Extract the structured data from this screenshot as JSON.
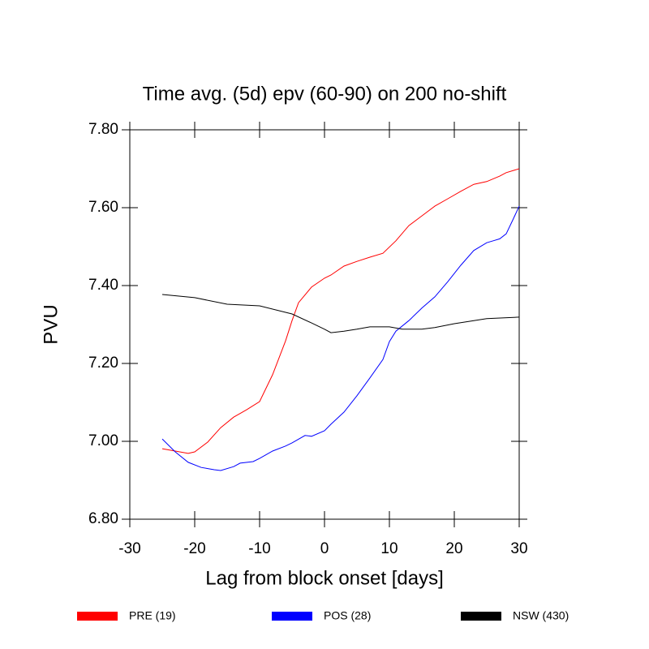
{
  "chart_data": {
    "type": "line",
    "title": "Time avg. (5d) epv (60-90) on 200 no-shift",
    "x_label": "Lag from block onset [days]",
    "y_label": "PVU",
    "xlim": [
      -30,
      30
    ],
    "xticks": [
      -30,
      -20,
      -10,
      0,
      10,
      20,
      30
    ],
    "ylim": [
      6.8,
      7.8
    ],
    "yticks": [
      {
        "value": 6.8,
        "label": "6.80"
      },
      {
        "value": 7.0,
        "label": "7.00"
      },
      {
        "value": 7.2,
        "label": "7.20"
      },
      {
        "value": 7.4,
        "label": "7.40"
      },
      {
        "value": 7.6,
        "label": "7.60"
      },
      {
        "value": 7.8,
        "label": "7.80"
      }
    ],
    "series": [
      {
        "name": "PRE (19)",
        "color": "#ff0000",
        "x": [
          -25,
          -23,
          -21,
          -20,
          -18,
          -16,
          -14,
          -12,
          -10,
          -8,
          -6,
          -5,
          -4,
          -2,
          0,
          1,
          3,
          5,
          7,
          9,
          11,
          13,
          15,
          17,
          19,
          21,
          23,
          25,
          27,
          28,
          30
        ],
        "values": [
          6.981,
          6.975,
          6.969,
          6.973,
          6.998,
          7.035,
          7.062,
          7.081,
          7.102,
          7.171,
          7.258,
          7.31,
          7.356,
          7.396,
          7.419,
          7.427,
          7.45,
          7.462,
          7.473,
          7.483,
          7.515,
          7.554,
          7.579,
          7.604,
          7.623,
          7.642,
          7.66,
          7.667,
          7.681,
          7.69,
          7.7
        ]
      },
      {
        "name": "POS (28)",
        "color": "#0000ff",
        "x": [
          -25,
          -23,
          -21,
          -19,
          -17,
          -16,
          -14,
          -13,
          -11,
          -10,
          -8,
          -6,
          -5,
          -3,
          -2,
          0,
          1,
          3,
          5,
          7,
          9,
          10,
          11,
          13,
          15,
          17,
          19,
          21,
          23,
          25,
          26,
          27,
          28,
          29,
          30
        ],
        "values": [
          7.006,
          6.973,
          6.946,
          6.933,
          6.927,
          6.925,
          6.935,
          6.944,
          6.948,
          6.956,
          6.975,
          6.988,
          6.996,
          7.015,
          7.013,
          7.027,
          7.044,
          7.075,
          7.117,
          7.163,
          7.21,
          7.256,
          7.283,
          7.31,
          7.342,
          7.371,
          7.41,
          7.452,
          7.49,
          7.51,
          7.515,
          7.52,
          7.533,
          7.568,
          7.604
        ]
      },
      {
        "name": "NSW (430)",
        "color": "#000000",
        "x": [
          -25,
          -20,
          -15,
          -10,
          -5,
          -2,
          0,
          1,
          3,
          5,
          7,
          10,
          12,
          15,
          17,
          20,
          25,
          30
        ],
        "values": [
          7.377,
          7.369,
          7.352,
          7.348,
          7.327,
          7.304,
          7.288,
          7.279,
          7.283,
          7.288,
          7.294,
          7.294,
          7.288,
          7.288,
          7.292,
          7.302,
          7.315,
          7.319
        ]
      }
    ]
  }
}
